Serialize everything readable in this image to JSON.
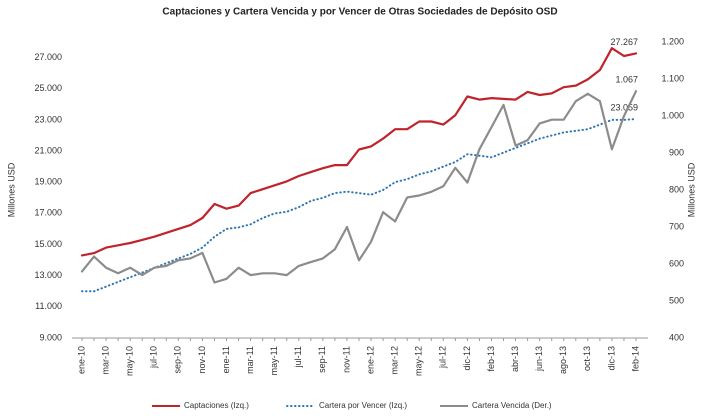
{
  "chart_data": {
    "type": "line",
    "title": "Captaciones y Cartera Vencida y por Vencer de Otras Sociedades de Depósito OSD",
    "y_label": "Millones  USD",
    "y2_label": "Millones  USD",
    "categories": [
      "ene-10",
      null,
      "mar-10",
      null,
      "may-10",
      null,
      "jul-10",
      null,
      "sep-10",
      null,
      "nov-10",
      null,
      "ene-11",
      null,
      "mar-11",
      null,
      "may-11",
      null,
      "jul-11",
      null,
      "sep-11",
      null,
      "nov-11",
      null,
      "ene-12",
      null,
      "mar-12",
      null,
      "may-12",
      null,
      "jul-12",
      null,
      "dic-12",
      null,
      "feb-13",
      null,
      "abr-13",
      null,
      "jun-13",
      null,
      "ago-13",
      null,
      "oct-13",
      null,
      "dic-13",
      null,
      "feb-14"
    ],
    "ylim": [
      9000,
      28000
    ],
    "yticks": [
      {
        "value": 9000,
        "label": "9.000"
      },
      {
        "value": 11000,
        "label": "11.000"
      },
      {
        "value": 13000,
        "label": "13.000"
      },
      {
        "value": 15000,
        "label": "15.000"
      },
      {
        "value": 17000,
        "label": "17.000"
      },
      {
        "value": 19000,
        "label": "19.000"
      },
      {
        "value": 21000,
        "label": "21.000"
      },
      {
        "value": 23000,
        "label": "23.000"
      },
      {
        "value": 25000,
        "label": "25.000"
      },
      {
        "value": 27000,
        "label": "27.000"
      }
    ],
    "y2lim": [
      400,
      1200
    ],
    "y2ticks": [
      400,
      500,
      600,
      700,
      800,
      900,
      {
        "value": 1000,
        "label": "1.000"
      },
      {
        "value": 1100,
        "label": "1.100"
      },
      {
        "value": 1200,
        "label": "1.200"
      }
    ],
    "grid": false,
    "legend": "bottom",
    "series": [
      {
        "name": "Captaciones (Izq.)",
        "color": "#c0232c",
        "dash": "solid",
        "axis": "y",
        "values": [
          14300,
          14450,
          14800,
          14950,
          15100,
          15300,
          15500,
          15750,
          16000,
          16250,
          16700,
          17600,
          17300,
          17500,
          18300,
          18550,
          18800,
          19050,
          19400,
          19650,
          19900,
          20100,
          20100,
          21100,
          21300,
          21800,
          22400,
          22400,
          22900,
          22900,
          22700,
          23300,
          24500,
          24300,
          24400,
          24350,
          24300,
          24800,
          24600,
          24700,
          25100,
          25200,
          25600,
          26200,
          27600,
          27100,
          27267
        ],
        "value_labels": [
          null,
          null,
          null,
          null,
          null,
          null,
          null,
          null,
          null,
          null,
          null,
          null,
          null,
          null,
          null,
          null,
          null,
          null,
          null,
          null,
          null,
          null,
          null,
          null,
          null,
          null,
          null,
          null,
          null,
          null,
          null,
          null,
          null,
          null,
          null,
          null,
          null,
          null,
          null,
          null,
          null,
          null,
          null,
          null,
          null,
          null,
          "27.267"
        ]
      },
      {
        "name": "Cartera por Vencer (Izq.)",
        "color": "#2e75b6",
        "dash": "dotted",
        "axis": "y",
        "values": [
          12000,
          12000,
          12300,
          12600,
          12900,
          13200,
          13500,
          13800,
          14100,
          14400,
          14800,
          15500,
          16000,
          16100,
          16300,
          16700,
          17000,
          17100,
          17400,
          17800,
          18000,
          18300,
          18400,
          18300,
          18200,
          18500,
          19000,
          19200,
          19500,
          19700,
          20000,
          20300,
          20800,
          20700,
          20600,
          20900,
          21200,
          21500,
          21800,
          22000,
          22200,
          22300,
          22400,
          22700,
          23000,
          23000,
          23059
        ],
        "value_labels": [
          null,
          null,
          null,
          null,
          null,
          null,
          null,
          null,
          null,
          null,
          null,
          null,
          null,
          null,
          null,
          null,
          null,
          null,
          null,
          null,
          null,
          null,
          null,
          null,
          null,
          null,
          null,
          null,
          null,
          null,
          null,
          null,
          null,
          null,
          null,
          null,
          null,
          null,
          null,
          null,
          null,
          null,
          null,
          null,
          null,
          null,
          "23.059"
        ]
      },
      {
        "name": "Cartera Vencida (Der.)",
        "color": "#8c8c8c",
        "dash": "solid",
        "axis": "y2",
        "values": [
          580,
          620,
          590,
          575,
          590,
          570,
          590,
          595,
          610,
          615,
          630,
          550,
          560,
          590,
          570,
          575,
          575,
          570,
          595,
          605,
          615,
          640,
          700,
          610,
          660,
          740,
          715,
          780,
          785,
          795,
          810,
          860,
          820,
          910,
          970,
          1030,
          920,
          935,
          980,
          990,
          990,
          1040,
          1060,
          1040,
          910,
          1000,
          1067
        ],
        "value_labels": [
          null,
          null,
          null,
          null,
          null,
          null,
          null,
          null,
          null,
          null,
          null,
          null,
          null,
          null,
          null,
          null,
          null,
          null,
          null,
          null,
          null,
          null,
          null,
          null,
          null,
          null,
          null,
          null,
          null,
          null,
          null,
          null,
          null,
          null,
          null,
          null,
          null,
          null,
          null,
          null,
          null,
          null,
          null,
          null,
          null,
          null,
          "1.067"
        ]
      }
    ]
  }
}
